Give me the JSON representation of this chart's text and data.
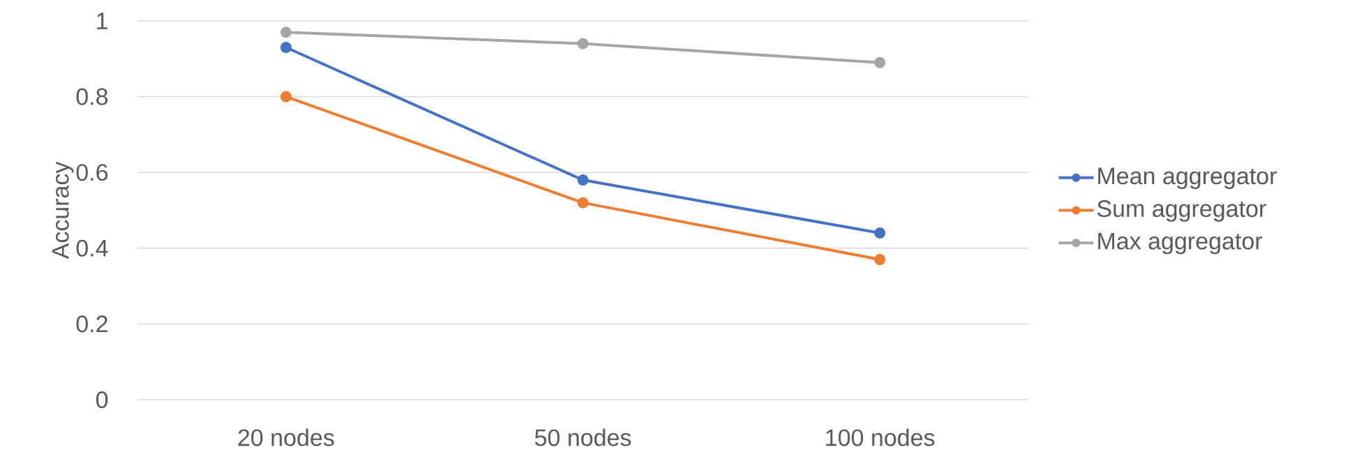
{
  "chart_data": {
    "type": "line",
    "ylabel": "Accuracy",
    "categories": [
      "20 nodes",
      "50 nodes",
      "100 nodes"
    ],
    "series": [
      {
        "name": "Mean aggregator",
        "color": "#4472c4",
        "values": [
          0.93,
          0.58,
          0.44
        ]
      },
      {
        "name": "Sum aggregator",
        "color": "#ed7d31",
        "values": [
          0.8,
          0.52,
          0.37
        ]
      },
      {
        "name": "Max aggregator",
        "color": "#a5a5a5",
        "values": [
          0.97,
          0.94,
          0.89
        ]
      }
    ],
    "ylim": [
      0,
      1
    ],
    "yticks": [
      0,
      0.2,
      0.4,
      0.6,
      0.8,
      1
    ],
    "grid": "y",
    "legend": "right",
    "marker": "circle",
    "line_style": "solid"
  }
}
